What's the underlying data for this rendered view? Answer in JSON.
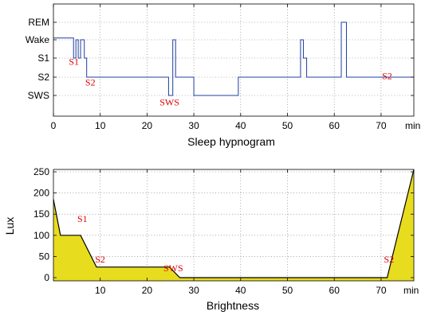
{
  "chart_data": [
    {
      "type": "line",
      "title": "",
      "xlabel": "Sleep hypnogram",
      "ylabel": "",
      "x_unit_label": "min",
      "xlim": [
        0,
        77
      ],
      "x_ticks": [
        0,
        10,
        20,
        30,
        40,
        50,
        60,
        70
      ],
      "y_categories": [
        "SWS",
        "S2",
        "S1",
        "Wake",
        "REM"
      ],
      "grid": true,
      "series": [
        {
          "color": "#1f3f9f",
          "points": [
            [
              0,
              3.1
            ],
            [
              4.3,
              3.1
            ],
            [
              4.3,
              2
            ],
            [
              4.8,
              2
            ],
            [
              4.8,
              3
            ],
            [
              5.3,
              3
            ],
            [
              5.3,
              2
            ],
            [
              5.8,
              2
            ],
            [
              5.8,
              3
            ],
            [
              6.6,
              3
            ],
            [
              6.6,
              2
            ],
            [
              7.1,
              2
            ],
            [
              7.1,
              1
            ],
            [
              24.6,
              1
            ],
            [
              24.6,
              0
            ],
            [
              25.5,
              0
            ],
            [
              25.5,
              3
            ],
            [
              26.1,
              3
            ],
            [
              26.1,
              1
            ],
            [
              30,
              1
            ],
            [
              30,
              0
            ],
            [
              39.5,
              0
            ],
            [
              39.5,
              1
            ],
            [
              52.8,
              1
            ],
            [
              52.8,
              3
            ],
            [
              53.4,
              3
            ],
            [
              53.4,
              2
            ],
            [
              54.1,
              2
            ],
            [
              54.1,
              1
            ],
            [
              61.5,
              1
            ],
            [
              61.5,
              4
            ],
            [
              62.6,
              4
            ],
            [
              62.6,
              1
            ],
            [
              77,
              1
            ]
          ]
        }
      ],
      "annotations": [
        {
          "text": "S1",
          "x": 3.3,
          "y": 1.65
        },
        {
          "text": "S2",
          "x": 6.8,
          "y": 0.55
        },
        {
          "text": "SWS",
          "x": 22.7,
          "y": -0.55
        },
        {
          "text": "S2",
          "x": 70.2,
          "y": 0.9
        }
      ]
    },
    {
      "type": "area",
      "title": "",
      "xlabel": "Brightness",
      "ylabel": "Lux",
      "x_unit_label": "min",
      "xlim": [
        0,
        77
      ],
      "ylim": [
        0,
        250
      ],
      "x_ticks": [
        10,
        20,
        30,
        40,
        50,
        60,
        70
      ],
      "y_ticks": [
        0,
        50,
        100,
        150,
        200,
        250
      ],
      "grid": true,
      "fill_color": "#e8dc1f",
      "series": [
        {
          "points": [
            [
              0,
              185
            ],
            [
              1.5,
              100
            ],
            [
              5.8,
              100
            ],
            [
              9.2,
              25
            ],
            [
              24.8,
              25
            ],
            [
              27,
              0
            ],
            [
              71.3,
              0
            ],
            [
              77,
              256
            ]
          ]
        }
      ],
      "annotations": [
        {
          "text": "S1",
          "x": 5.1,
          "y": 132
        },
        {
          "text": "S2",
          "x": 8.9,
          "y": 36
        },
        {
          "text": "SWS",
          "x": 23.5,
          "y": 15
        },
        {
          "text": "S2",
          "x": 70.6,
          "y": 36
        }
      ]
    }
  ]
}
